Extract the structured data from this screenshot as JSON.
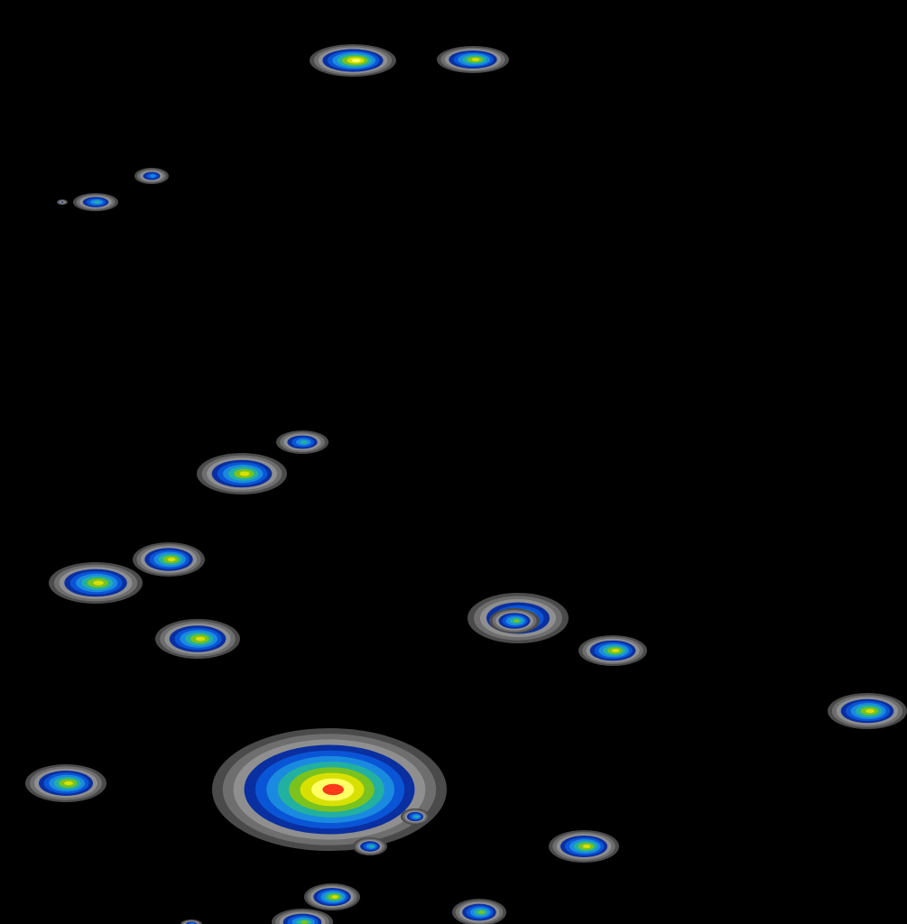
{
  "view": {
    "background_color": "#000000",
    "description_kind": "density-heatmap-contours"
  },
  "palette": {
    "levels": [
      "#4a4a4a",
      "#6e6e6e",
      "#8f8f8f",
      "#0a2fa0",
      "#0a55d6",
      "#1a8ae0",
      "#22b0a0",
      "#7ac21e",
      "#d8e000",
      "#ffff66",
      "#ff3a1a"
    ]
  },
  "hotspots": [
    {
      "id": "h1",
      "intensity": 0.88
    },
    {
      "id": "h2",
      "intensity": 0.8
    },
    {
      "id": "h3",
      "intensity": 0.55
    },
    {
      "id": "h4",
      "intensity": 0.62
    },
    {
      "id": "h5",
      "intensity": 0.4
    },
    {
      "id": "h6",
      "intensity": 0.62
    },
    {
      "id": "h7",
      "intensity": 0.8
    },
    {
      "id": "h8",
      "intensity": 0.82
    },
    {
      "id": "h9",
      "intensity": 0.8
    },
    {
      "id": "h10",
      "intensity": 0.82
    },
    {
      "id": "h11",
      "intensity": 0.75
    },
    {
      "id": "h12",
      "intensity": 0.8
    },
    {
      "id": "h13",
      "intensity": 0.8
    },
    {
      "id": "h14",
      "intensity": 0.78
    },
    {
      "id": "h15",
      "intensity": 0.8
    },
    {
      "id": "h16",
      "intensity": 1.0
    },
    {
      "id": "h17",
      "intensity": 0.62
    },
    {
      "id": "h18",
      "intensity": 0.62
    },
    {
      "id": "h19",
      "intensity": 0.8
    },
    {
      "id": "h20",
      "intensity": 0.7
    },
    {
      "id": "h21",
      "intensity": 0.7
    },
    {
      "id": "h22",
      "intensity": 0.72
    },
    {
      "id": "h23",
      "intensity": 0.5
    }
  ]
}
